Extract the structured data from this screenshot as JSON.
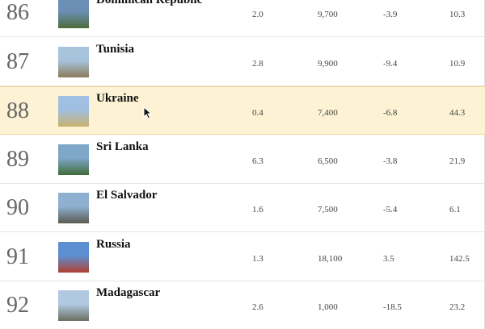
{
  "table": {
    "rows": [
      [
        "86",
        "Dominican Republic",
        "2.0",
        "9,700",
        "-3.9",
        "10.3"
      ],
      [
        "87",
        "Tunisia",
        "2.8",
        "9,900",
        "-9.4",
        "10.9"
      ],
      [
        "88",
        "Ukraine",
        "0.4",
        "7,400",
        "-6.8",
        "44.3"
      ],
      [
        "89",
        "Sri Lanka",
        "6.3",
        "6,500",
        "-3.8",
        "21.9"
      ],
      [
        "90",
        "El Salvador",
        "1.6",
        "7,500",
        "-5.4",
        "6.1"
      ],
      [
        "91",
        "Russia",
        "1.3",
        "18,100",
        "3.5",
        "142.5"
      ],
      [
        "92",
        "Madagascar",
        "2.6",
        "1,000",
        "-18.5",
        "23.2"
      ]
    ],
    "highlighted_row": 2
  }
}
